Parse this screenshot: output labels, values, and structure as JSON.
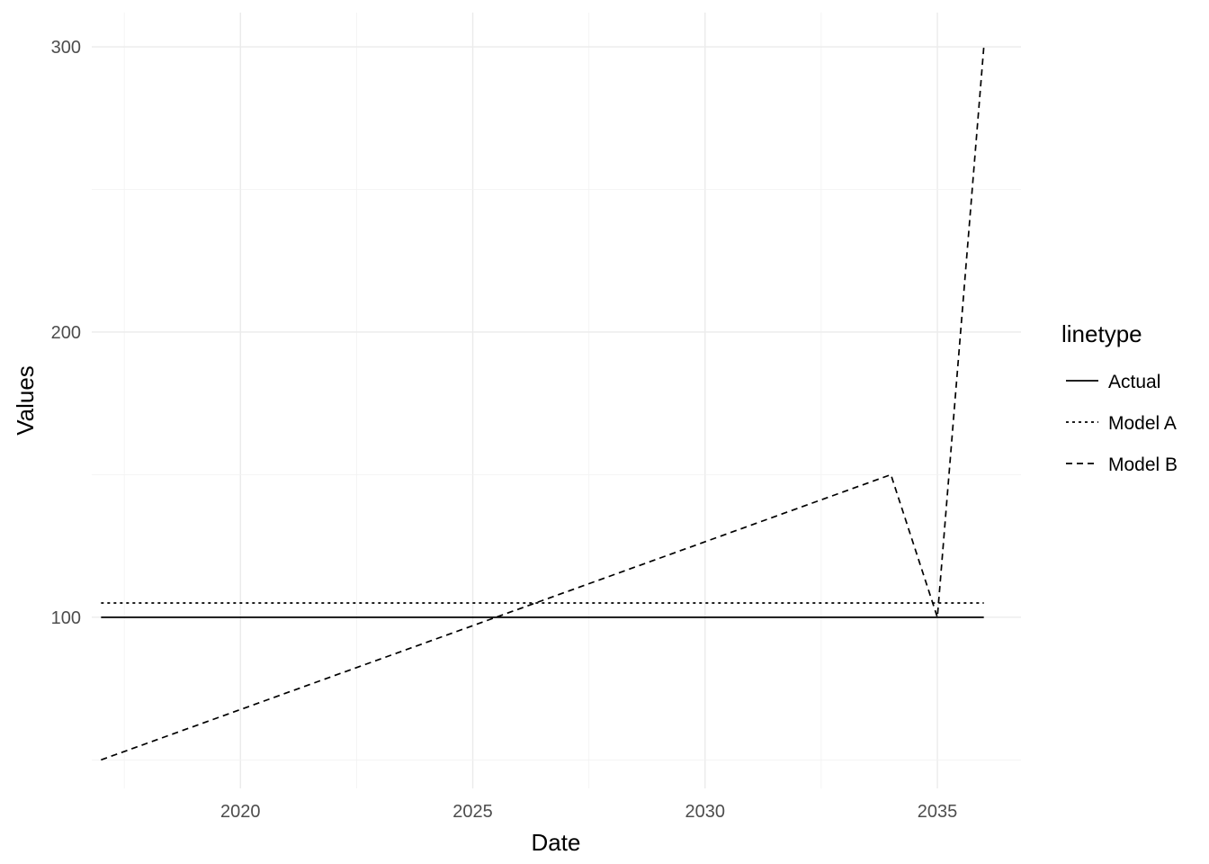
{
  "chart_data": {
    "type": "line",
    "xlabel": "Date",
    "ylabel": "Values",
    "xlim": [
      2016.8,
      2036.8
    ],
    "ylim": [
      40,
      312
    ],
    "x_ticks": [
      2020,
      2025,
      2030,
      2035
    ],
    "x_tick_labels": [
      "2020",
      "2025",
      "2030",
      "2035"
    ],
    "y_ticks": [
      100,
      200,
      300
    ],
    "y_tick_labels": [
      "100",
      "200",
      "300"
    ],
    "grid": true,
    "legend": {
      "title": "linetype",
      "position": "right"
    },
    "series": [
      {
        "name": "Actual",
        "linetype": "solid",
        "x": [
          2017,
          2036
        ],
        "y": [
          100,
          100
        ]
      },
      {
        "name": "Model A",
        "linetype": "dotted",
        "x": [
          2017,
          2036
        ],
        "y": [
          105,
          105
        ]
      },
      {
        "name": "Model B",
        "linetype": "dashed",
        "x": [
          2017,
          2034,
          2035,
          2036
        ],
        "y": [
          50,
          150,
          100,
          300
        ]
      }
    ]
  }
}
